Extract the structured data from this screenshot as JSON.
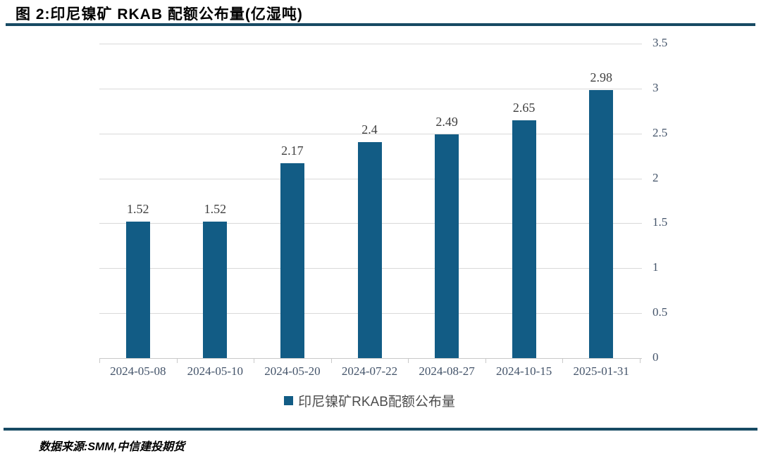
{
  "header": {
    "title": "图 2:印尼镍矿 RKAB 配额公布量(亿湿吨)"
  },
  "chart_data": {
    "type": "bar",
    "title": "图 2:印尼镍矿 RKAB 配额公布量(亿湿吨)",
    "categories": [
      "2024-05-08",
      "2024-05-10",
      "2024-05-20",
      "2024-07-22",
      "2024-08-27",
      "2024-10-15",
      "2025-01-31"
    ],
    "values": [
      1.52,
      1.52,
      2.17,
      2.4,
      2.49,
      2.65,
      2.98
    ],
    "data_labels": [
      "1.52",
      "1.52",
      "2.17",
      "2.4",
      "2.49",
      "2.65",
      "2.98"
    ],
    "series_name": "印尼镍矿RKAB配额公布量",
    "xlabel": "",
    "ylabel": "",
    "y_axis": {
      "side": "right",
      "min": 0,
      "max": 3.5,
      "step": 0.5,
      "tick_labels": [
        "0",
        "0.5",
        "1",
        "1.5",
        "2",
        "2.5",
        "3",
        "3.5"
      ]
    },
    "grid": true,
    "legend_position": "bottom",
    "bar_color": "#125C85"
  },
  "legend": {
    "label": "印尼镍矿RKAB配额公布量"
  },
  "footer": {
    "source": "数据来源:SMM,中信建投期货"
  },
  "colors": {
    "bar": "#125C85",
    "rule": "#174A63",
    "gridline": "#D9D9D9",
    "axis_label": "#44546A",
    "data_label": "#3F3F3F"
  }
}
